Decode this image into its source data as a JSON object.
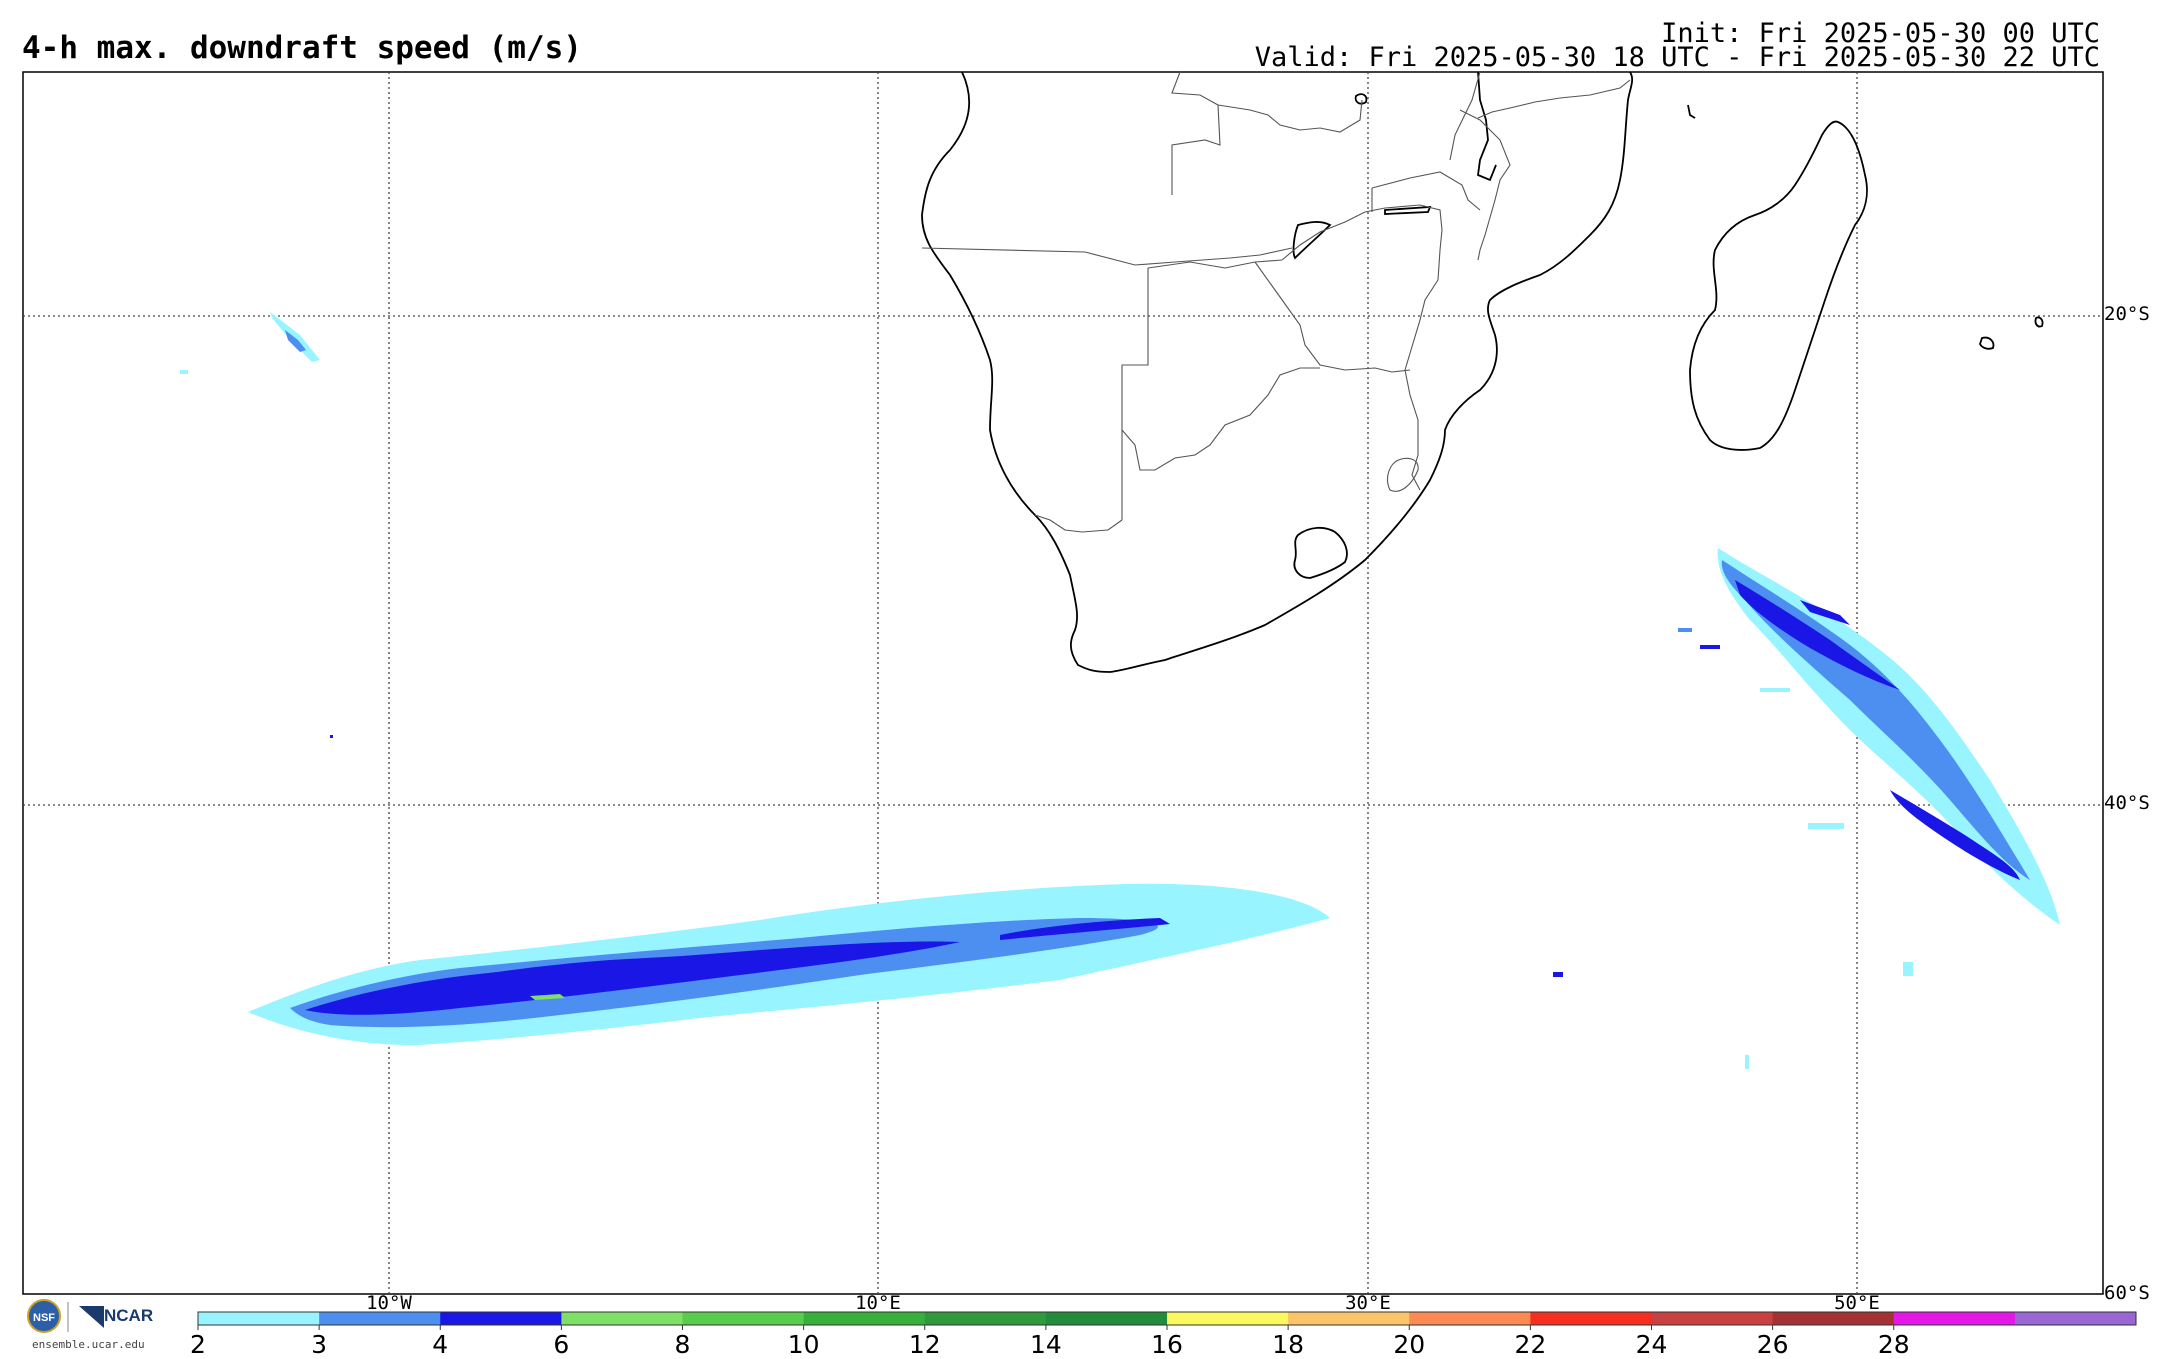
{
  "title": "4-h max. downdraft speed (m/s)",
  "init": "Init: Fri 2025-05-30 00 UTC",
  "valid": "Valid: Fri 2025-05-30 18 UTC - Fri 2025-05-30 22 UTC",
  "lat_labels": [
    "20°S",
    "40°S",
    "60°S"
  ],
  "lon_labels": [
    "10°W",
    "10°E",
    "30°E",
    "50°E"
  ],
  "colorbar": {
    "ticks": [
      "2",
      "3",
      "4",
      "6",
      "8",
      "10",
      "12",
      "14",
      "16",
      "18",
      "20",
      "22",
      "24",
      "26",
      "28"
    ],
    "colors": [
      "#98f5ff",
      "#4c8ff0",
      "#1a16e6",
      "#7ee066",
      "#58cc4c",
      "#38b03c",
      "#2e9a3c",
      "#228c3c",
      "#fcf860",
      "#fbc468",
      "#fc8a52",
      "#f62e20",
      "#c84040",
      "#a43232",
      "#e418e6",
      "#9a66d4"
    ]
  },
  "logos": {
    "left": "nsf-logo",
    "right": "NCAR",
    "site": "ensemble.ucar.edu"
  },
  "map": {
    "region": "Southern Africa and South Atlantic / Indian Ocean",
    "variable_levels": [
      {
        "level": "2-3",
        "color": "#98f5ff"
      },
      {
        "level": "3-4",
        "color": "#4c8ff0"
      },
      {
        "level": "4-6",
        "color": "#1a16e6"
      },
      {
        "level": "6-8",
        "color": "#7ee066"
      }
    ]
  }
}
